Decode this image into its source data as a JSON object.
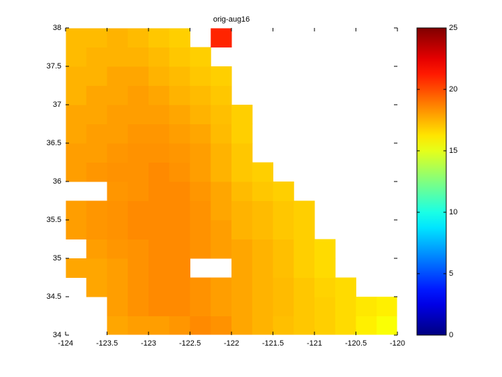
{
  "chart_data": {
    "type": "heatmap",
    "title": "orig-aug16",
    "x": [
      -123.875,
      -123.625,
      -123.375,
      -123.125,
      -122.875,
      -122.625,
      -122.375,
      -122.125,
      -121.875,
      -121.625,
      -121.375,
      -121.125,
      -120.875,
      -120.625,
      -120.375,
      -120.125
    ],
    "y": [
      34.125,
      34.375,
      34.625,
      34.875,
      35.125,
      35.375,
      35.625,
      35.875,
      36.125,
      36.375,
      36.625,
      36.875,
      37.125,
      37.375,
      37.625,
      37.875
    ],
    "values": [
      [
        null,
        null,
        17.8,
        18,
        18,
        18.2,
        18.5,
        18.3,
        17.8,
        17.5,
        17.2,
        17,
        16.8,
        16.5,
        16,
        15.5
      ],
      [
        null,
        null,
        18,
        18.3,
        18.5,
        18.5,
        18.3,
        18,
        17.8,
        17.5,
        17.3,
        17,
        16.8,
        16.5,
        16.2,
        16
      ],
      [
        null,
        17.8,
        18,
        18.3,
        18.5,
        18.5,
        18.3,
        18,
        17.8,
        17.5,
        17.3,
        17,
        16.7,
        16.5,
        null,
        null
      ],
      [
        17.8,
        17.8,
        18,
        18.3,
        18.5,
        18.5,
        null,
        null,
        17.8,
        17.5,
        17.2,
        16.8,
        16.5,
        null,
        null,
        null
      ],
      [
        null,
        18,
        18.2,
        18.3,
        18.5,
        18.5,
        18.3,
        18,
        17.8,
        17.5,
        17.2,
        16.8,
        16.5,
        null,
        null,
        null
      ],
      [
        18,
        18.2,
        18.3,
        18.5,
        18.5,
        18.5,
        18.3,
        18,
        17.5,
        17.3,
        17,
        16.8,
        null,
        null,
        null,
        null
      ],
      [
        18,
        18.2,
        18.3,
        18.5,
        18.5,
        18.5,
        18.3,
        17.8,
        17.5,
        17.3,
        17,
        16.8,
        null,
        null,
        null,
        null
      ],
      [
        null,
        null,
        18.2,
        18.3,
        18.5,
        18.5,
        18.2,
        17.8,
        17.3,
        17,
        16.8,
        null,
        null,
        null,
        null,
        null
      ],
      [
        18,
        18.2,
        18.3,
        18.3,
        18.5,
        18.3,
        18,
        17.5,
        17,
        16.8,
        null,
        null,
        null,
        null,
        null,
        null
      ],
      [
        18,
        18,
        18.2,
        18.3,
        18.3,
        18.2,
        18,
        17.5,
        17,
        null,
        null,
        null,
        null,
        null,
        null,
        null
      ],
      [
        17.8,
        18,
        18,
        18.2,
        18.2,
        18,
        17.8,
        17.3,
        16.8,
        null,
        null,
        null,
        null,
        null,
        null,
        null
      ],
      [
        17.8,
        17.8,
        18,
        18,
        18,
        17.8,
        17.5,
        17.2,
        16.8,
        null,
        null,
        null,
        null,
        null,
        null,
        null
      ],
      [
        17.5,
        17.8,
        17.8,
        18,
        17.8,
        17.5,
        17.3,
        17,
        null,
        null,
        null,
        null,
        null,
        null,
        null,
        null
      ],
      [
        17.5,
        17.5,
        17.8,
        17.8,
        17.5,
        17.3,
        17,
        16.8,
        null,
        null,
        null,
        null,
        null,
        null,
        null,
        null
      ],
      [
        17.3,
        17.5,
        17.5,
        17.5,
        17.3,
        17,
        16.8,
        null,
        null,
        null,
        null,
        null,
        null,
        null,
        null,
        null
      ],
      [
        17.3,
        17.3,
        17.5,
        17.3,
        17,
        16.8,
        null,
        21,
        null,
        null,
        null,
        null,
        null,
        null,
        null,
        null
      ]
    ],
    "xlim": [
      -124,
      -120
    ],
    "xticks": [
      -124,
      -123.5,
      -123,
      -122.5,
      -122,
      -121.5,
      -121,
      -120.5,
      -120
    ],
    "ylim": [
      34,
      38
    ],
    "yticks": [
      34,
      34.5,
      35,
      35.5,
      36,
      36.5,
      37,
      37.5,
      38
    ],
    "colormap": "jet",
    "clim": [
      0,
      25
    ],
    "colorbar_ticks": [
      0,
      5,
      10,
      15,
      20,
      25
    ]
  }
}
